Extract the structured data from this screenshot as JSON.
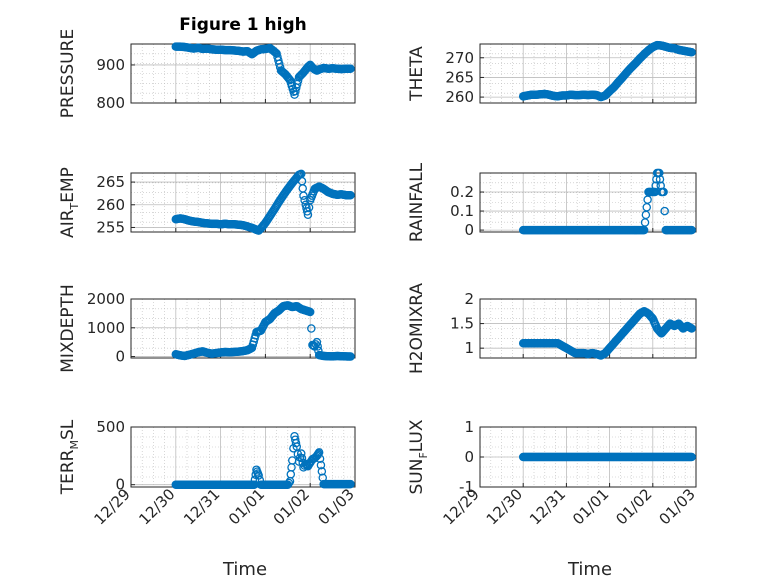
{
  "figure_title": "Figure 1 high",
  "colors": {
    "marker": "#0072BD",
    "axes": "#262626",
    "grid": "#BDBDBD"
  },
  "chart_data": [
    {
      "type": "scatter",
      "id": "pressure",
      "title": "Figure 1 high",
      "ylabel": "PRESSURE",
      "ylabel_sub": "",
      "xlabel": "",
      "ylim": [
        800,
        955
      ],
      "yticks": [
        800,
        900
      ],
      "grid": true,
      "x": [
        0.0,
        0.1,
        0.2,
        0.3,
        0.4,
        0.5,
        0.6,
        0.7,
        0.8,
        0.9,
        1.0,
        1.1,
        1.2,
        1.3,
        1.4,
        1.5,
        1.6,
        1.7,
        1.8,
        1.9,
        2.0,
        2.1,
        2.15,
        2.25,
        2.35,
        2.45,
        2.55,
        2.65,
        2.75,
        2.85,
        2.95,
        3.0,
        3.05,
        3.1,
        3.15,
        3.2,
        3.25,
        3.3,
        3.35,
        3.4,
        3.5,
        3.6,
        3.7,
        3.8,
        3.9
      ],
      "y": [
        948,
        948,
        947,
        945,
        943,
        945,
        942,
        943,
        941,
        940,
        940,
        939,
        939,
        938,
        937,
        935,
        936,
        928,
        937,
        941,
        942,
        944,
        940,
        930,
        885,
        875,
        860,
        822,
        868,
        880,
        895,
        900,
        893,
        888,
        885,
        888,
        890,
        892,
        891,
        890,
        891,
        890,
        889,
        890,
        890
      ]
    },
    {
      "type": "scatter",
      "id": "theta",
      "title": "",
      "ylabel": "THETA",
      "ylabel_sub": "",
      "xlabel": "",
      "ylim": [
        258.5,
        273.5
      ],
      "yticks": [
        260,
        265,
        270
      ],
      "grid": true,
      "x": [
        0.0,
        0.1,
        0.2,
        0.3,
        0.4,
        0.5,
        0.6,
        0.7,
        0.8,
        0.9,
        1.0,
        1.1,
        1.2,
        1.3,
        1.4,
        1.5,
        1.6,
        1.7,
        1.8,
        1.9,
        2.0,
        2.1,
        2.2,
        2.3,
        2.4,
        2.5,
        2.6,
        2.7,
        2.8,
        2.9,
        3.0,
        3.1,
        3.2,
        3.3,
        3.4,
        3.5,
        3.6,
        3.7,
        3.8,
        3.9
      ],
      "y": [
        260.2,
        260.4,
        260.6,
        260.6,
        260.7,
        260.8,
        260.6,
        260.3,
        260.2,
        260.4,
        260.4,
        260.6,
        260.5,
        260.5,
        260.6,
        260.5,
        260.6,
        260.5,
        260.0,
        260.4,
        261.5,
        262.5,
        263.8,
        265.0,
        266.3,
        267.5,
        268.6,
        269.8,
        270.9,
        271.9,
        272.7,
        273.2,
        273.1,
        272.8,
        272.5,
        272.4,
        272.0,
        271.8,
        271.6,
        271.4
      ]
    },
    {
      "type": "scatter",
      "id": "air_temp",
      "title": "",
      "ylabel": "AIR",
      "ylabel_sub": "T",
      "ylabel_tail": "EMP",
      "xlabel": "",
      "ylim": [
        254,
        267
      ],
      "yticks": [
        255,
        260,
        265
      ],
      "grid": true,
      "x": [
        0.0,
        0.1,
        0.2,
        0.3,
        0.4,
        0.5,
        0.6,
        0.7,
        0.8,
        0.9,
        1.0,
        1.1,
        1.2,
        1.3,
        1.4,
        1.5,
        1.6,
        1.7,
        1.8,
        1.85,
        1.9,
        2.0,
        2.1,
        2.2,
        2.3,
        2.4,
        2.5,
        2.6,
        2.7,
        2.75,
        2.8,
        2.85,
        2.9,
        2.95,
        3.0,
        3.1,
        3.2,
        3.3,
        3.4,
        3.5,
        3.6,
        3.7,
        3.8,
        3.9
      ],
      "y": [
        256.8,
        257.0,
        256.8,
        256.5,
        256.3,
        256.2,
        256.0,
        255.9,
        255.8,
        255.8,
        255.7,
        255.8,
        255.7,
        255.7,
        255.6,
        255.5,
        255.2,
        254.9,
        254.5,
        254.3,
        254.8,
        256.0,
        257.5,
        259.0,
        260.6,
        262.1,
        263.5,
        264.8,
        266.0,
        266.6,
        266.8,
        262.0,
        260.0,
        257.8,
        261.0,
        263.5,
        264.0,
        263.5,
        262.8,
        262.4,
        262.2,
        262.3,
        262.1,
        262.1
      ]
    },
    {
      "type": "scatter",
      "id": "rainfall",
      "title": "",
      "ylabel": "RAINFALL",
      "ylabel_sub": "",
      "xlabel": "",
      "ylim": [
        -0.01,
        0.3
      ],
      "yticks": [
        0,
        0.1,
        0.2
      ],
      "grid": true,
      "x": [
        0.0,
        0.1,
        0.2,
        0.3,
        0.4,
        0.5,
        0.6,
        0.7,
        0.8,
        0.9,
        1.0,
        1.1,
        1.2,
        1.3,
        1.4,
        1.5,
        1.6,
        1.7,
        1.8,
        1.9,
        2.0,
        2.1,
        2.2,
        2.3,
        2.4,
        2.5,
        2.6,
        2.7,
        2.8,
        2.9,
        2.95,
        3.0,
        3.05,
        3.1,
        3.15,
        3.2,
        3.25,
        3.3,
        3.35,
        3.4,
        3.5,
        3.6,
        3.7,
        3.8,
        3.9
      ],
      "y": [
        0,
        0,
        0,
        0,
        0,
        0,
        0,
        0,
        0,
        0,
        0,
        0,
        0,
        0,
        0,
        0,
        0,
        0,
        0,
        0,
        0,
        0,
        0,
        0,
        0,
        0,
        0,
        0,
        0,
        0.2,
        0.2,
        0.2,
        0.2,
        0.3,
        0.3,
        0.2,
        0.2,
        0,
        0,
        0,
        0,
        0,
        0,
        0,
        0
      ]
    },
    {
      "type": "scatter",
      "id": "mixdepth",
      "title": "",
      "ylabel": "MIXDEPTH",
      "ylabel_sub": "",
      "xlabel": "",
      "ylim": [
        -50,
        2000
      ],
      "yticks": [
        0,
        1000,
        2000
      ],
      "grid": true,
      "x": [
        0.0,
        0.1,
        0.2,
        0.3,
        0.4,
        0.5,
        0.6,
        0.7,
        0.8,
        0.9,
        1.0,
        1.1,
        1.2,
        1.3,
        1.4,
        1.5,
        1.6,
        1.7,
        1.8,
        1.9,
        2.0,
        2.1,
        2.2,
        2.3,
        2.4,
        2.5,
        2.6,
        2.7,
        2.8,
        2.9,
        3.0,
        3.05,
        3.1,
        3.15,
        3.2,
        3.3,
        3.4,
        3.5,
        3.6,
        3.7,
        3.8,
        3.9
      ],
      "y": [
        80,
        40,
        20,
        60,
        100,
        150,
        180,
        130,
        100,
        120,
        140,
        160,
        150,
        160,
        170,
        190,
        220,
        300,
        850,
        900,
        1200,
        1300,
        1500,
        1600,
        1750,
        1780,
        1720,
        1750,
        1650,
        1600,
        1550,
        400,
        350,
        500,
        50,
        20,
        10,
        5,
        20,
        10,
        5,
        0
      ]
    },
    {
      "type": "scatter",
      "id": "h2omixra",
      "title": "",
      "ylabel": "H2OMIXRA",
      "ylabel_sub": "",
      "xlabel": "",
      "ylim": [
        0.8,
        2.0
      ],
      "yticks": [
        1,
        1.5,
        2
      ],
      "grid": true,
      "x": [
        0.0,
        0.1,
        0.2,
        0.3,
        0.4,
        0.5,
        0.6,
        0.7,
        0.8,
        0.9,
        1.0,
        1.1,
        1.2,
        1.3,
        1.4,
        1.5,
        1.6,
        1.7,
        1.8,
        1.9,
        2.0,
        2.1,
        2.2,
        2.3,
        2.4,
        2.5,
        2.6,
        2.7,
        2.8,
        2.9,
        3.0,
        3.1,
        3.2,
        3.3,
        3.4,
        3.5,
        3.6,
        3.7,
        3.8,
        3.9
      ],
      "y": [
        1.1,
        1.1,
        1.1,
        1.1,
        1.1,
        1.1,
        1.1,
        1.1,
        1.1,
        1.05,
        1.0,
        0.95,
        0.9,
        0.9,
        0.9,
        0.88,
        0.9,
        0.88,
        0.85,
        0.9,
        1.0,
        1.1,
        1.2,
        1.3,
        1.4,
        1.5,
        1.6,
        1.7,
        1.75,
        1.7,
        1.6,
        1.4,
        1.3,
        1.4,
        1.5,
        1.45,
        1.5,
        1.4,
        1.45,
        1.4
      ]
    },
    {
      "type": "scatter",
      "id": "terr_msl",
      "title": "",
      "ylabel": "TERR",
      "ylabel_sub": "M",
      "ylabel_tail": "SL",
      "xlabel": "Time",
      "ylim": [
        -20,
        500
      ],
      "yticks": [
        0,
        500
      ],
      "grid": true,
      "x": [
        0.0,
        0.1,
        0.2,
        0.3,
        0.4,
        0.5,
        0.6,
        0.7,
        0.8,
        0.9,
        1.0,
        1.1,
        1.2,
        1.3,
        1.4,
        1.5,
        1.6,
        1.7,
        1.75,
        1.8,
        1.85,
        1.9,
        2.0,
        2.1,
        2.2,
        2.3,
        2.4,
        2.5,
        2.55,
        2.6,
        2.65,
        2.7,
        2.75,
        2.8,
        2.85,
        2.9,
        2.95,
        3.0,
        3.05,
        3.1,
        3.15,
        3.2,
        3.3,
        3.4,
        3.5,
        3.6,
        3.7,
        3.8,
        3.9
      ],
      "y": [
        0,
        0,
        0,
        0,
        0,
        0,
        0,
        0,
        0,
        0,
        0,
        0,
        0,
        0,
        0,
        0,
        0,
        0,
        0,
        130,
        80,
        0,
        0,
        0,
        0,
        0,
        0,
        0,
        30,
        210,
        420,
        330,
        200,
        270,
        150,
        180,
        160,
        190,
        220,
        230,
        250,
        280,
        5,
        5,
        5,
        5,
        5,
        5,
        5
      ]
    },
    {
      "type": "scatter",
      "id": "sun_flux",
      "title": "",
      "ylabel": "SUN",
      "ylabel_sub": "F",
      "ylabel_tail": "LUX",
      "xlabel": "Time",
      "ylim": [
        -1,
        1
      ],
      "yticks": [
        -1,
        0,
        1
      ],
      "grid": true,
      "x": [
        0.0,
        0.1,
        0.2,
        0.3,
        0.4,
        0.5,
        0.6,
        0.7,
        0.8,
        0.9,
        1.0,
        1.1,
        1.2,
        1.3,
        1.4,
        1.5,
        1.6,
        1.7,
        1.8,
        1.9,
        2.0,
        2.1,
        2.2,
        2.3,
        2.4,
        2.5,
        2.6,
        2.7,
        2.8,
        2.9,
        3.0,
        3.1,
        3.2,
        3.3,
        3.4,
        3.5,
        3.6,
        3.7,
        3.8,
        3.9
      ],
      "y": [
        0,
        0,
        0,
        0,
        0,
        0,
        0,
        0,
        0,
        0,
        0,
        0,
        0,
        0,
        0,
        0,
        0,
        0,
        0,
        0,
        0,
        0,
        0,
        0,
        0,
        0,
        0,
        0,
        0,
        0,
        0,
        0,
        0,
        0,
        0,
        0,
        0,
        0,
        0,
        0
      ]
    }
  ],
  "x_ticks": [
    "12/29",
    "12/30",
    "12/31",
    "01/01",
    "01/02",
    "01/03"
  ]
}
